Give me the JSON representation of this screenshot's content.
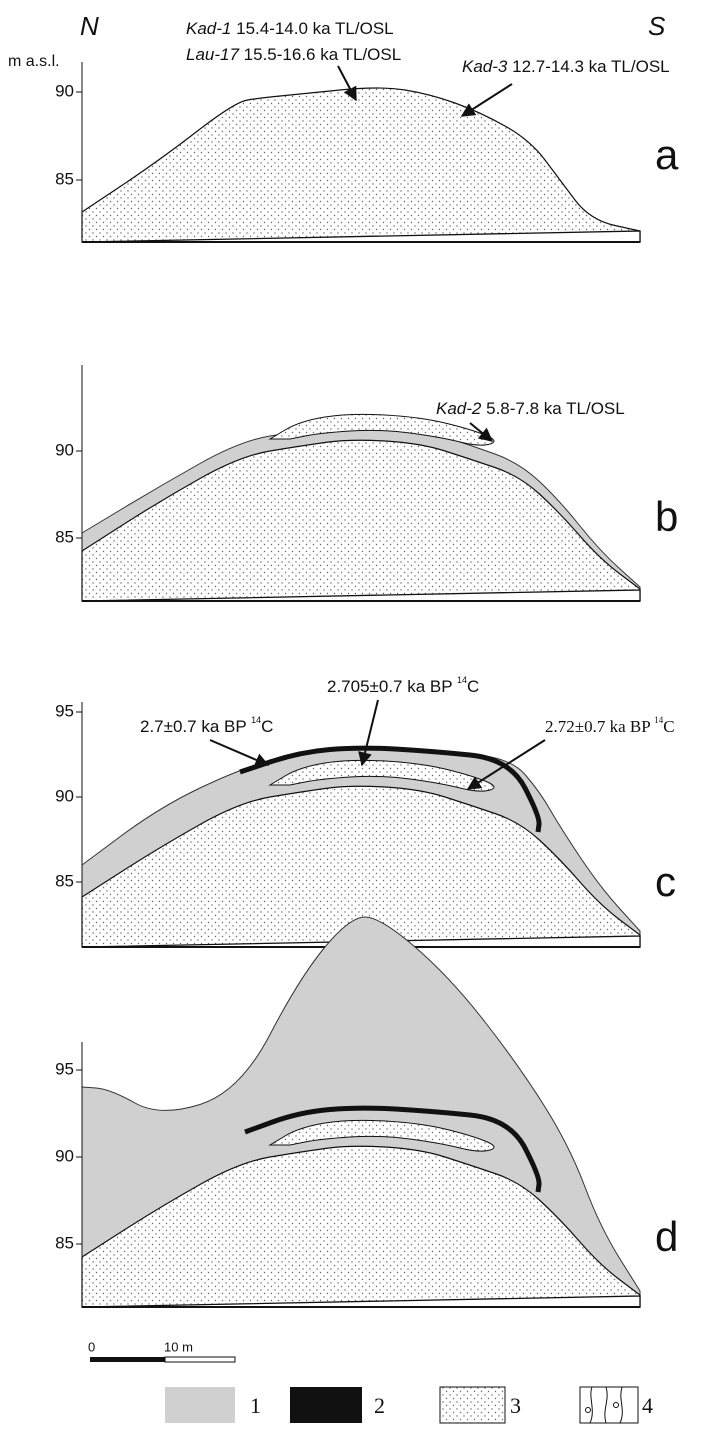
{
  "orientation": {
    "north": "N",
    "south": "S"
  },
  "axis_label": "m a.s.l.",
  "panels": [
    {
      "label": "a",
      "ticks": [
        "90",
        "85"
      ],
      "annotations": [
        {
          "site": "Kad-1",
          "text": "15.4-14.0 ka TL/OSL"
        },
        {
          "site": "Lau-17",
          "text": "15.5-16.6 ka TL/OSL"
        },
        {
          "site": "Kad-3",
          "text": "12.7-14.3 ka TL/OSL"
        }
      ]
    },
    {
      "label": "b",
      "ticks": [
        "90",
        "85"
      ],
      "annotations": [
        {
          "site": "Kad-2",
          "text": "5.8-7.8 ka TL/OSL"
        }
      ]
    },
    {
      "label": "c",
      "ticks": [
        "95",
        "90",
        "85"
      ],
      "annotations": [
        {
          "text": "2.705±0.7 ka BP",
          "isotope": "14",
          "element": "C"
        },
        {
          "text": "2.7±0.7 ka BP",
          "isotope": "14",
          "element": "C"
        },
        {
          "text": "2.72±0.7 ka BP",
          "isotope": "14",
          "element": "C"
        }
      ]
    },
    {
      "label": "d",
      "ticks": [
        "95",
        "90",
        "85"
      ]
    }
  ],
  "scale_bar": {
    "start": "0",
    "end": "10 m"
  },
  "legend": [
    "1",
    "2",
    "3",
    "4"
  ]
}
